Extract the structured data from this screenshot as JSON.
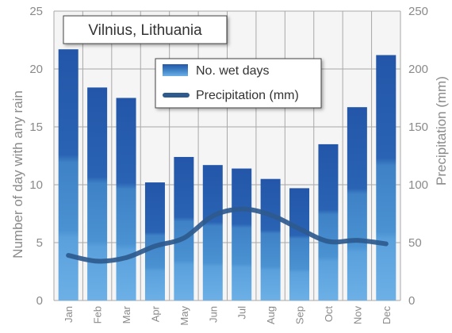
{
  "chart_data": {
    "type": "bar",
    "title": "Vilnius, Lithuania",
    "categories": [
      "Jan",
      "Feb",
      "Mar",
      "Apr",
      "May",
      "Jun",
      "Jul",
      "Aug",
      "Sep",
      "Oct",
      "Nov",
      "Dec"
    ],
    "series": [
      {
        "name": "No. wet days",
        "type": "bar",
        "axis": "left",
        "values": [
          21.7,
          18.4,
          17.5,
          10.2,
          12.4,
          11.7,
          11.4,
          10.5,
          9.7,
          13.5,
          16.7,
          21.2
        ]
      },
      {
        "name": "Precipitation (mm)",
        "type": "line",
        "axis": "right",
        "values": [
          39,
          34,
          37,
          47,
          54,
          73,
          79,
          74,
          62,
          51,
          52,
          49
        ]
      }
    ],
    "ylabel_left": "Number of day with any rain",
    "ylabel_right": "Precipitation  (mm)",
    "ylim_left": [
      0,
      25
    ],
    "ylim_right": [
      0,
      250
    ],
    "yticks_left": [
      "0",
      "5",
      "10",
      "15",
      "20",
      "25"
    ],
    "yticks_right": [
      "0",
      "50",
      "100",
      "150",
      "200",
      "250"
    ],
    "grid": true,
    "legend_placement": "top-center",
    "colors": {
      "bar_top": "#2356a8",
      "bar_mid": "#3d82c4",
      "bar_bottom": "#62a7e2",
      "line": "#2e5a8e",
      "grid": "#a8a8a8",
      "plot_bg": "#f5f5f5",
      "text_muted": "#8a8a8a"
    }
  }
}
